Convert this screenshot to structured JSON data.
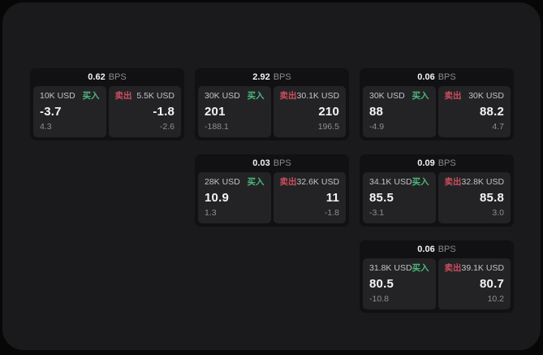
{
  "labels": {
    "bps": "BPS",
    "buy": "买入",
    "sell": "卖出"
  },
  "colors": {
    "outer_bg": "#070707",
    "surface_bg": "#1a1a1c",
    "card_bg": "#111113",
    "panel_bg": "#232326",
    "buy_green": "#4db87d",
    "sell_red": "#cc4e5e",
    "value_white": "#f5f5f6",
    "muted_gray": "#8e8e92"
  },
  "cards": [
    {
      "bps": "0.62",
      "buy": {
        "amount": "10K USD",
        "value": "-3.7",
        "delta": "4.3"
      },
      "sell": {
        "amount": "5.5K USD",
        "value": "-1.8",
        "delta": "-2.6"
      }
    },
    {
      "bps": "2.92",
      "buy": {
        "amount": "30K USD",
        "value": "201",
        "delta": "-188.1"
      },
      "sell": {
        "amount": "30.1K USD",
        "value": "210",
        "delta": "196.5"
      }
    },
    {
      "bps": "0.06",
      "buy": {
        "amount": "30K USD",
        "value": "88",
        "delta": "-4.9"
      },
      "sell": {
        "amount": "30K USD",
        "value": "88.2",
        "delta": "4.7"
      }
    },
    {
      "bps": "0.03",
      "buy": {
        "amount": "28K USD",
        "value": "10.9",
        "delta": "1.3"
      },
      "sell": {
        "amount": "32.6K USD",
        "value": "11",
        "delta": "-1.8"
      }
    },
    {
      "bps": "0.09",
      "buy": {
        "amount": "34.1K USD",
        "value": "85.5",
        "delta": "-3.1"
      },
      "sell": {
        "amount": "32.8K USD",
        "value": "85.8",
        "delta": "3.0"
      }
    },
    {
      "bps": "0.06",
      "buy": {
        "amount": "31.8K USD",
        "value": "80.5",
        "delta": "-10.8"
      },
      "sell": {
        "amount": "39.1K USD",
        "value": "80.7",
        "delta": "10.2"
      }
    }
  ]
}
